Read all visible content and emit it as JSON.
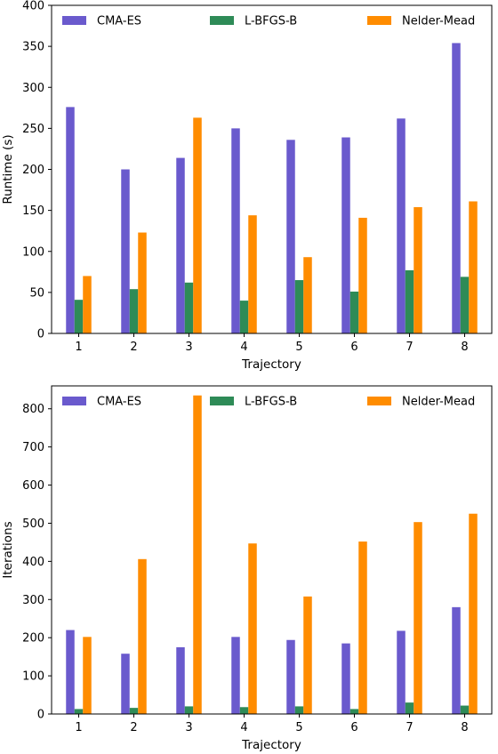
{
  "chart_data": [
    {
      "type": "bar",
      "xlabel": "Trajectory",
      "ylabel": "Runtime (s)",
      "ylim": [
        0,
        400
      ],
      "yticks": [
        0,
        50,
        100,
        150,
        200,
        250,
        300,
        350,
        400
      ],
      "categories": [
        "1",
        "2",
        "3",
        "4",
        "5",
        "6",
        "7",
        "8"
      ],
      "legend_position": "top",
      "grid": false,
      "series": [
        {
          "name": "CMA-ES",
          "color": "#6a5acd",
          "values": [
            276,
            200,
            214,
            250,
            236,
            239,
            262,
            354
          ]
        },
        {
          "name": "L-BFGS-B",
          "color": "#2e8b57",
          "values": [
            41,
            54,
            62,
            40,
            65,
            51,
            77,
            69
          ]
        },
        {
          "name": "Nelder-Mead",
          "color": "#ff8c00",
          "values": [
            70,
            123,
            263,
            144,
            93,
            141,
            154,
            161
          ]
        }
      ]
    },
    {
      "type": "bar",
      "xlabel": "Trajectory",
      "ylabel": "Iterations",
      "ylim": [
        0,
        860
      ],
      "yticks": [
        0,
        100,
        200,
        300,
        400,
        500,
        600,
        700,
        800
      ],
      "categories": [
        "1",
        "2",
        "3",
        "4",
        "5",
        "6",
        "7",
        "8"
      ],
      "legend_position": "top",
      "grid": false,
      "series": [
        {
          "name": "CMA-ES",
          "color": "#6a5acd",
          "values": [
            220,
            158,
            175,
            202,
            194,
            185,
            218,
            280
          ]
        },
        {
          "name": "L-BFGS-B",
          "color": "#2e8b57",
          "values": [
            13,
            16,
            20,
            18,
            20,
            13,
            30,
            22
          ]
        },
        {
          "name": "Nelder-Mead",
          "color": "#ff8c00",
          "values": [
            202,
            406,
            835,
            447,
            308,
            452,
            503,
            525
          ]
        }
      ]
    }
  ]
}
